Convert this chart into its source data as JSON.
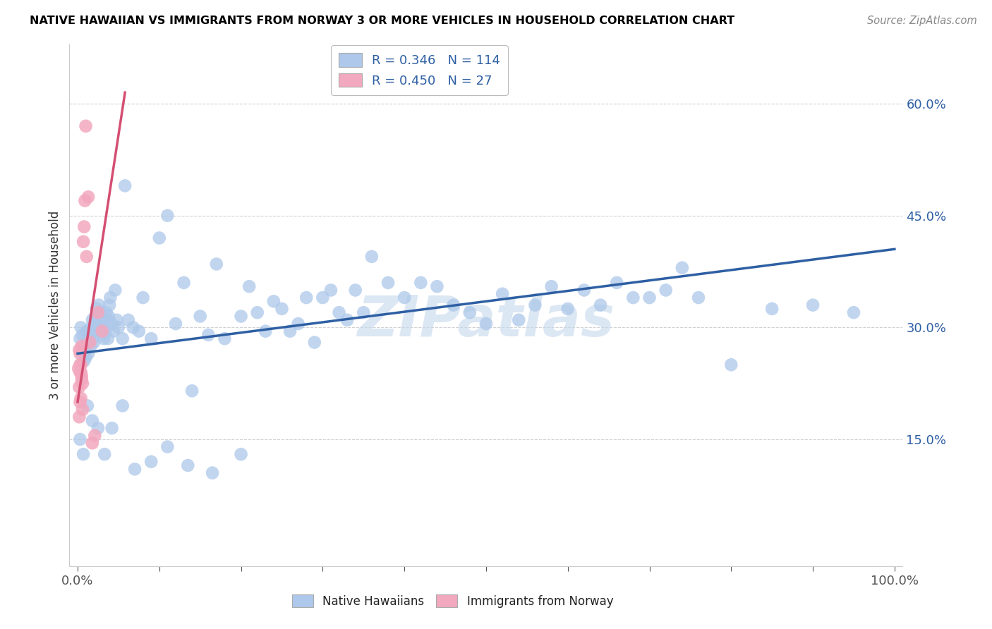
{
  "title": "NATIVE HAWAIIAN VS IMMIGRANTS FROM NORWAY 3 OR MORE VEHICLES IN HOUSEHOLD CORRELATION CHART",
  "source": "Source: ZipAtlas.com",
  "ylabel": "3 or more Vehicles in Household",
  "xlim": [
    -0.01,
    1.01
  ],
  "ylim": [
    -0.02,
    0.68
  ],
  "ytick_vals": [
    0.15,
    0.3,
    0.45,
    0.6
  ],
  "ytick_labels": [
    "15.0%",
    "30.0%",
    "45.0%",
    "60.0%"
  ],
  "xtick_vals": [
    0.0,
    0.1,
    0.2,
    0.3,
    0.4,
    0.5,
    0.6,
    0.7,
    0.8,
    0.9,
    1.0
  ],
  "blue_R": 0.346,
  "blue_N": 114,
  "pink_R": 0.45,
  "pink_N": 27,
  "blue_color": "#adc8ea",
  "pink_color": "#f2a8be",
  "blue_line_color": "#2e5fa3",
  "pink_line_color": "#d44f72",
  "watermark_color": "#c5d8ed",
  "blue_trend_x0": 0.0,
  "blue_trend_y0": 0.265,
  "blue_trend_x1": 1.0,
  "blue_trend_y1": 0.405,
  "pink_trend_x0": 0.0,
  "pink_trend_y0": 0.2,
  "pink_trend_x1": 0.058,
  "pink_trend_y1": 0.615,
  "blue_x": [
    0.003,
    0.004,
    0.005,
    0.006,
    0.007,
    0.008,
    0.009,
    0.01,
    0.011,
    0.012,
    0.013,
    0.014,
    0.015,
    0.016,
    0.017,
    0.018,
    0.019,
    0.02,
    0.021,
    0.022,
    0.023,
    0.024,
    0.025,
    0.026,
    0.027,
    0.028,
    0.029,
    0.03,
    0.031,
    0.032,
    0.033,
    0.034,
    0.035,
    0.036,
    0.037,
    0.038,
    0.039,
    0.04,
    0.042,
    0.044,
    0.046,
    0.048,
    0.05,
    0.055,
    0.058,
    0.062,
    0.068,
    0.075,
    0.08,
    0.09,
    0.1,
    0.11,
    0.12,
    0.13,
    0.14,
    0.15,
    0.16,
    0.17,
    0.18,
    0.2,
    0.21,
    0.22,
    0.23,
    0.24,
    0.25,
    0.26,
    0.27,
    0.28,
    0.29,
    0.3,
    0.31,
    0.32,
    0.33,
    0.34,
    0.35,
    0.36,
    0.38,
    0.4,
    0.42,
    0.44,
    0.46,
    0.48,
    0.5,
    0.52,
    0.54,
    0.56,
    0.58,
    0.6,
    0.62,
    0.64,
    0.66,
    0.68,
    0.7,
    0.72,
    0.74,
    0.76,
    0.8,
    0.85,
    0.9,
    0.95,
    0.003,
    0.007,
    0.012,
    0.018,
    0.025,
    0.033,
    0.042,
    0.055,
    0.07,
    0.09,
    0.11,
    0.135,
    0.165,
    0.2
  ],
  "blue_y": [
    0.285,
    0.3,
    0.27,
    0.29,
    0.265,
    0.255,
    0.275,
    0.26,
    0.295,
    0.28,
    0.265,
    0.285,
    0.295,
    0.275,
    0.3,
    0.31,
    0.285,
    0.28,
    0.305,
    0.315,
    0.325,
    0.3,
    0.295,
    0.33,
    0.305,
    0.32,
    0.315,
    0.29,
    0.31,
    0.285,
    0.3,
    0.295,
    0.32,
    0.31,
    0.285,
    0.315,
    0.33,
    0.34,
    0.305,
    0.295,
    0.35,
    0.31,
    0.3,
    0.285,
    0.49,
    0.31,
    0.3,
    0.295,
    0.34,
    0.285,
    0.42,
    0.45,
    0.305,
    0.36,
    0.215,
    0.315,
    0.29,
    0.385,
    0.285,
    0.315,
    0.355,
    0.32,
    0.295,
    0.335,
    0.325,
    0.295,
    0.305,
    0.34,
    0.28,
    0.34,
    0.35,
    0.32,
    0.31,
    0.35,
    0.32,
    0.395,
    0.36,
    0.34,
    0.36,
    0.355,
    0.33,
    0.32,
    0.305,
    0.345,
    0.31,
    0.33,
    0.355,
    0.325,
    0.35,
    0.33,
    0.36,
    0.34,
    0.34,
    0.35,
    0.38,
    0.34,
    0.25,
    0.325,
    0.33,
    0.32,
    0.15,
    0.13,
    0.195,
    0.175,
    0.165,
    0.13,
    0.165,
    0.195,
    0.11,
    0.12,
    0.14,
    0.115,
    0.105,
    0.13
  ],
  "pink_x": [
    0.001,
    0.002,
    0.002,
    0.003,
    0.003,
    0.004,
    0.004,
    0.005,
    0.005,
    0.006,
    0.006,
    0.007,
    0.008,
    0.009,
    0.01,
    0.011,
    0.013,
    0.015,
    0.018,
    0.021,
    0.025,
    0.03,
    0.003,
    0.004,
    0.005,
    0.002,
    0.003
  ],
  "pink_y": [
    0.245,
    0.27,
    0.22,
    0.265,
    0.24,
    0.25,
    0.205,
    0.275,
    0.235,
    0.225,
    0.19,
    0.415,
    0.435,
    0.47,
    0.57,
    0.395,
    0.475,
    0.28,
    0.145,
    0.155,
    0.32,
    0.295,
    0.25,
    0.24,
    0.23,
    0.18,
    0.2
  ]
}
